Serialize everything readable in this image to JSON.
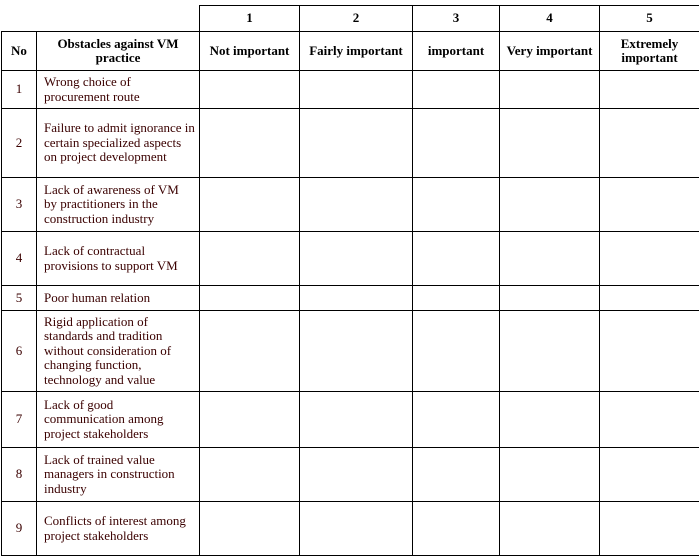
{
  "header": {
    "scale_numbers": [
      "1",
      "2",
      "3",
      "4",
      "5"
    ],
    "no_label": "No",
    "obstacles_label": "Obstacles against VM practice",
    "scale_labels": [
      "Not important",
      "Fairly important",
      "important",
      "Very important",
      "Extremely important"
    ]
  },
  "rows": [
    {
      "no": "1",
      "text": "Wrong choice of procurement route"
    },
    {
      "no": "2",
      "text": "Failure to admit ignorance in certain specialized aspects on project development"
    },
    {
      "no": "3",
      "text": "Lack of awareness of VM by practitioners in the construction industry"
    },
    {
      "no": "4",
      "text": "Lack of contractual provisions to support VM"
    },
    {
      "no": "5",
      "text": "Poor human relation"
    },
    {
      "no": "6",
      "text": "Rigid application of standards and tradition without consideration of changing function, technology and value"
    },
    {
      "no": "7",
      "text": "Lack of good communication among project stakeholders"
    },
    {
      "no": "8",
      "text": "Lack of trained value managers in construction industry"
    },
    {
      "no": "9",
      "text": "Conflicts of interest among project stakeholders"
    }
  ]
}
